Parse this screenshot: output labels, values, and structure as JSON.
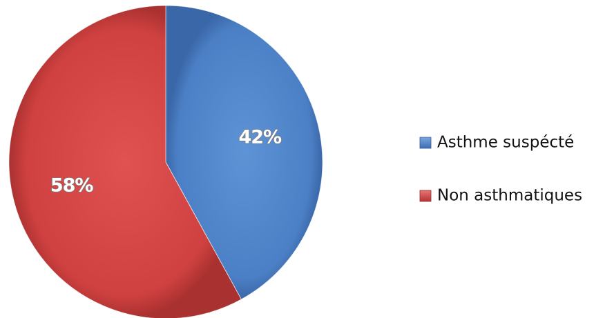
{
  "chart_data": {
    "type": "pie",
    "categories": [
      "Asthme suspécté",
      "Non asthmatiques"
    ],
    "values": [
      42,
      58
    ],
    "labels": [
      "42%",
      "58%"
    ],
    "colors": [
      "#4d82c9",
      "#d24443"
    ],
    "legend_position": "right",
    "start_angle": "top",
    "direction": "clockwise"
  }
}
